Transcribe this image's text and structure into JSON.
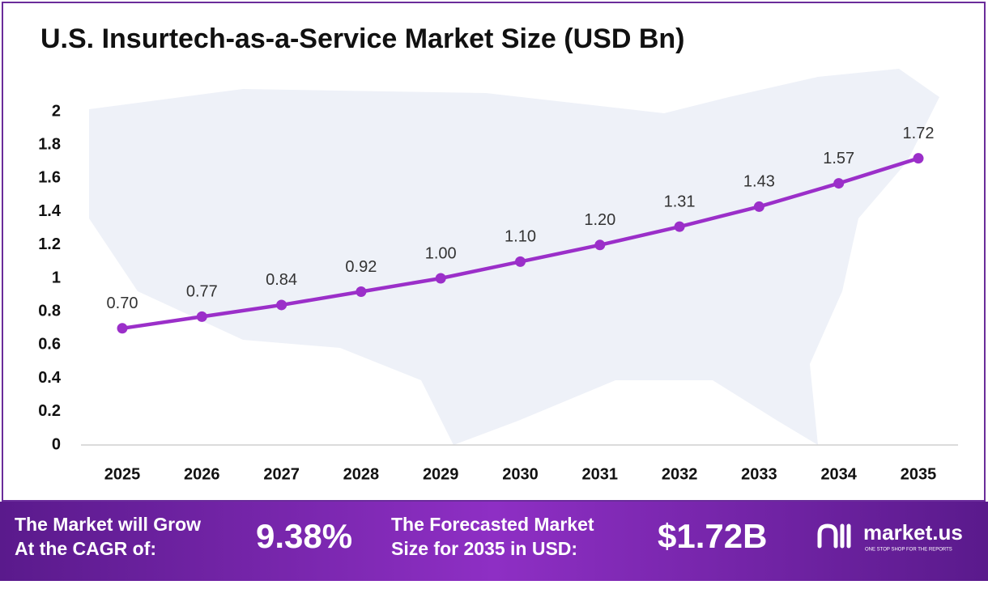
{
  "chart_data": {
    "type": "line",
    "title": "U.S. Insurtech-as-a-Service Market Size (USD Bn)",
    "categories": [
      "2025",
      "2026",
      "2027",
      "2028",
      "2029",
      "2030",
      "2031",
      "2032",
      "2033",
      "2034",
      "2035"
    ],
    "series": [
      {
        "name": "Market Size",
        "color": "#9b2fc9",
        "values": [
          0.7,
          0.77,
          0.84,
          0.92,
          1.0,
          1.1,
          1.2,
          1.31,
          1.43,
          1.57,
          1.72
        ],
        "value_labels": [
          "0.70",
          "0.77",
          "0.84",
          "0.92",
          "1.00",
          "1.10",
          "1.20",
          "1.31",
          "1.43",
          "1.57",
          "1.72"
        ]
      }
    ],
    "ylim": [
      0,
      2
    ],
    "yticks": [
      0,
      0.2,
      0.4,
      0.6,
      0.8,
      1,
      1.2,
      1.4,
      1.6,
      1.8,
      2
    ]
  },
  "footer": {
    "cagr_text": [
      "The Market will Grow",
      "At the CAGR of:"
    ],
    "cagr_value": "9.38%",
    "forecast_text": [
      "The Forecasted Market",
      "Size for 2035 in USD:"
    ],
    "forecast_value": "$1.72B",
    "brand": "market.us",
    "tagline": "ONE STOP SHOP FOR THE REPORTS"
  }
}
